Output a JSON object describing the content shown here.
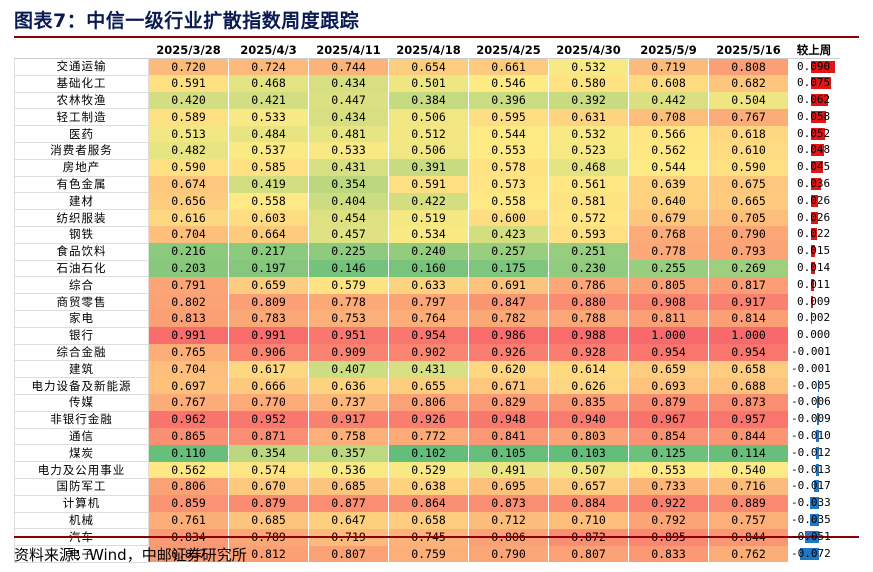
{
  "title": "图表7：中信一级行业扩散指数周度跟踪",
  "source": "资料来源：Wind，中邮证券研究所",
  "columns": [
    "2025/3/28",
    "2025/4/3",
    "2025/4/11",
    "2025/4/18",
    "2025/4/25",
    "2025/4/30",
    "2025/5/9",
    "2025/5/16",
    "较上周"
  ],
  "rows": [
    {
      "name": "交通运输",
      "values": [
        "0.720",
        "0.724",
        "0.744",
        "0.654",
        "0.661",
        "0.532",
        "0.719",
        "0.808"
      ],
      "chg": "0.090",
      "chg_num": 0.09
    },
    {
      "name": "基础化工",
      "values": [
        "0.591",
        "0.468",
        "0.434",
        "0.501",
        "0.546",
        "0.580",
        "0.608",
        "0.682"
      ],
      "chg": "0.075",
      "chg_num": 0.075
    },
    {
      "name": "农林牧渔",
      "values": [
        "0.420",
        "0.421",
        "0.447",
        "0.384",
        "0.396",
        "0.392",
        "0.442",
        "0.504"
      ],
      "chg": "0.062",
      "chg_num": 0.062
    },
    {
      "name": "轻工制造",
      "values": [
        "0.589",
        "0.533",
        "0.434",
        "0.506",
        "0.595",
        "0.631",
        "0.708",
        "0.767"
      ],
      "chg": "0.058",
      "chg_num": 0.058
    },
    {
      "name": "医药",
      "values": [
        "0.513",
        "0.484",
        "0.481",
        "0.512",
        "0.544",
        "0.532",
        "0.566",
        "0.618"
      ],
      "chg": "0.052",
      "chg_num": 0.052
    },
    {
      "name": "消费者服务",
      "values": [
        "0.482",
        "0.537",
        "0.533",
        "0.506",
        "0.553",
        "0.523",
        "0.562",
        "0.610"
      ],
      "chg": "0.048",
      "chg_num": 0.048
    },
    {
      "name": "房地产",
      "values": [
        "0.590",
        "0.585",
        "0.431",
        "0.391",
        "0.578",
        "0.468",
        "0.544",
        "0.590"
      ],
      "chg": "0.045",
      "chg_num": 0.045
    },
    {
      "name": "有色金属",
      "values": [
        "0.674",
        "0.419",
        "0.354",
        "0.591",
        "0.573",
        "0.561",
        "0.639",
        "0.675"
      ],
      "chg": "0.036",
      "chg_num": 0.036
    },
    {
      "name": "建材",
      "values": [
        "0.656",
        "0.558",
        "0.404",
        "0.422",
        "0.558",
        "0.581",
        "0.640",
        "0.665"
      ],
      "chg": "0.026",
      "chg_num": 0.026
    },
    {
      "name": "纺织服装",
      "values": [
        "0.616",
        "0.603",
        "0.454",
        "0.519",
        "0.600",
        "0.572",
        "0.679",
        "0.705"
      ],
      "chg": "0.026",
      "chg_num": 0.026
    },
    {
      "name": "钢铁",
      "values": [
        "0.704",
        "0.664",
        "0.457",
        "0.534",
        "0.423",
        "0.593",
        "0.768",
        "0.790"
      ],
      "chg": "0.022",
      "chg_num": 0.022
    },
    {
      "name": "食品饮料",
      "values": [
        "0.216",
        "0.217",
        "0.225",
        "0.240",
        "0.257",
        "0.251",
        "0.778",
        "0.793"
      ],
      "chg": "0.015",
      "chg_num": 0.015
    },
    {
      "name": "石油石化",
      "values": [
        "0.203",
        "0.197",
        "0.146",
        "0.160",
        "0.175",
        "0.230",
        "0.255",
        "0.269"
      ],
      "chg": "0.014",
      "chg_num": 0.014
    },
    {
      "name": "综合",
      "values": [
        "0.791",
        "0.659",
        "0.579",
        "0.633",
        "0.691",
        "0.786",
        "0.805",
        "0.817"
      ],
      "chg": "0.011",
      "chg_num": 0.011
    },
    {
      "name": "商贸零售",
      "values": [
        "0.802",
        "0.809",
        "0.778",
        "0.797",
        "0.847",
        "0.880",
        "0.908",
        "0.917"
      ],
      "chg": "0.009",
      "chg_num": 0.009
    },
    {
      "name": "家电",
      "values": [
        "0.813",
        "0.783",
        "0.753",
        "0.764",
        "0.782",
        "0.788",
        "0.811",
        "0.814"
      ],
      "chg": "0.002",
      "chg_num": 0.002
    },
    {
      "name": "银行",
      "values": [
        "0.991",
        "0.991",
        "0.951",
        "0.954",
        "0.986",
        "0.988",
        "1.000",
        "1.000"
      ],
      "chg": "0.000",
      "chg_num": 0.0
    },
    {
      "name": "综合金融",
      "values": [
        "0.765",
        "0.906",
        "0.909",
        "0.902",
        "0.926",
        "0.928",
        "0.954",
        "0.954"
      ],
      "chg": "-0.001",
      "chg_num": -0.001
    },
    {
      "name": "建筑",
      "values": [
        "0.704",
        "0.617",
        "0.407",
        "0.431",
        "0.620",
        "0.614",
        "0.659",
        "0.658"
      ],
      "chg": "-0.001",
      "chg_num": -0.001
    },
    {
      "name": "电力设备及新能源",
      "values": [
        "0.697",
        "0.666",
        "0.636",
        "0.655",
        "0.671",
        "0.626",
        "0.693",
        "0.688"
      ],
      "chg": "-0.005",
      "chg_num": -0.005
    },
    {
      "name": "传媒",
      "values": [
        "0.767",
        "0.770",
        "0.737",
        "0.806",
        "0.829",
        "0.835",
        "0.879",
        "0.873"
      ],
      "chg": "-0.006",
      "chg_num": -0.006
    },
    {
      "name": "非银行金融",
      "values": [
        "0.962",
        "0.952",
        "0.917",
        "0.926",
        "0.948",
        "0.940",
        "0.967",
        "0.957"
      ],
      "chg": "-0.009",
      "chg_num": -0.009
    },
    {
      "name": "通信",
      "values": [
        "0.865",
        "0.871",
        "0.758",
        "0.772",
        "0.841",
        "0.803",
        "0.854",
        "0.844"
      ],
      "chg": "-0.010",
      "chg_num": -0.01
    },
    {
      "name": "煤炭",
      "values": [
        "0.110",
        "0.354",
        "0.357",
        "0.102",
        "0.105",
        "0.103",
        "0.125",
        "0.114"
      ],
      "chg": "-0.012",
      "chg_num": -0.012
    },
    {
      "name": "电力及公用事业",
      "values": [
        "0.562",
        "0.574",
        "0.536",
        "0.529",
        "0.491",
        "0.507",
        "0.553",
        "0.540"
      ],
      "chg": "-0.013",
      "chg_num": -0.013
    },
    {
      "name": "国防军工",
      "values": [
        "0.806",
        "0.670",
        "0.685",
        "0.638",
        "0.695",
        "0.657",
        "0.733",
        "0.716"
      ],
      "chg": "-0.017",
      "chg_num": -0.017
    },
    {
      "name": "计算机",
      "values": [
        "0.859",
        "0.879",
        "0.877",
        "0.864",
        "0.873",
        "0.884",
        "0.922",
        "0.889"
      ],
      "chg": "-0.033",
      "chg_num": -0.033
    },
    {
      "name": "机械",
      "values": [
        "0.761",
        "0.685",
        "0.647",
        "0.658",
        "0.712",
        "0.710",
        "0.792",
        "0.757"
      ],
      "chg": "-0.035",
      "chg_num": -0.035
    },
    {
      "name": "汽车",
      "values": [
        "0.834",
        "0.789",
        "0.719",
        "0.745",
        "0.806",
        "0.872",
        "0.895",
        "0.844"
      ],
      "chg": "-0.051",
      "chg_num": -0.051
    },
    {
      "name": "电子",
      "values": [
        "0.837",
        "0.812",
        "0.807",
        "0.759",
        "0.790",
        "0.807",
        "0.833",
        "0.762"
      ],
      "chg": "-0.072",
      "chg_num": -0.072
    }
  ],
  "colors": {
    "low": "#63be7b",
    "mid": "#ffeb84",
    "high": "#f8696b",
    "pos_bar": "#e01616",
    "neg_bar": "#1f77c6",
    "title": "#0a1a52",
    "rule": "#8b0000"
  }
}
